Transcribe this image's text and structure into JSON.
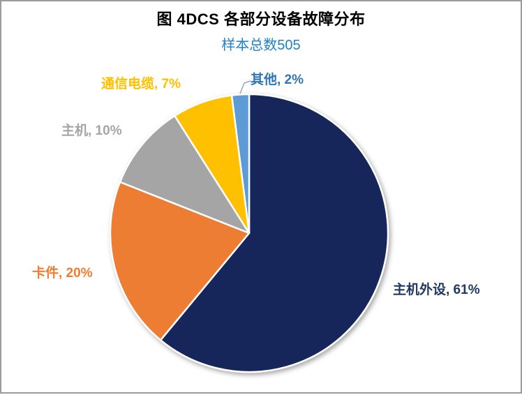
{
  "page": {
    "frame_color": "#9B9B9B",
    "background_color": "#FFFFFF"
  },
  "header": {
    "title": "图 4DCS 各部分设备故障分布",
    "title_color": "#000000",
    "subtitle": "样本总数505",
    "subtitle_color": "#2082C6"
  },
  "chart_data": {
    "type": "pie",
    "title": "图 4DCS 各部分设备故障分布",
    "subtitle": "样本总数505",
    "total_samples": 505,
    "start_angle_deg": 0,
    "direction": "clockwise",
    "legend_position": "none",
    "labels_outside": true,
    "slice_border_color": "#FFFFFF",
    "slices": [
      {
        "label": "主机外设",
        "percent": 61,
        "color": "#14265A",
        "label_color": "#1F3864",
        "label_text": "主机外设, 61%"
      },
      {
        "label": "卡件",
        "percent": 20,
        "color": "#ED7D31",
        "label_color": "#ED7D31",
        "label_text": "卡件, 20%"
      },
      {
        "label": "主机",
        "percent": 10,
        "color": "#A5A5A5",
        "label_color": "#A5A5A5",
        "label_text": "主机, 10%"
      },
      {
        "label": "通信电缆",
        "percent": 7,
        "color": "#FFC000",
        "label_color": "#FFC000",
        "label_text": "通信电缆, 7%"
      },
      {
        "label": "其他",
        "percent": 2,
        "color": "#5B9BD5",
        "label_color": "#2E75B6",
        "label_text": "其他, 2%"
      }
    ],
    "leader_line": {
      "for": "其他",
      "color": "#9AA5B8"
    }
  }
}
